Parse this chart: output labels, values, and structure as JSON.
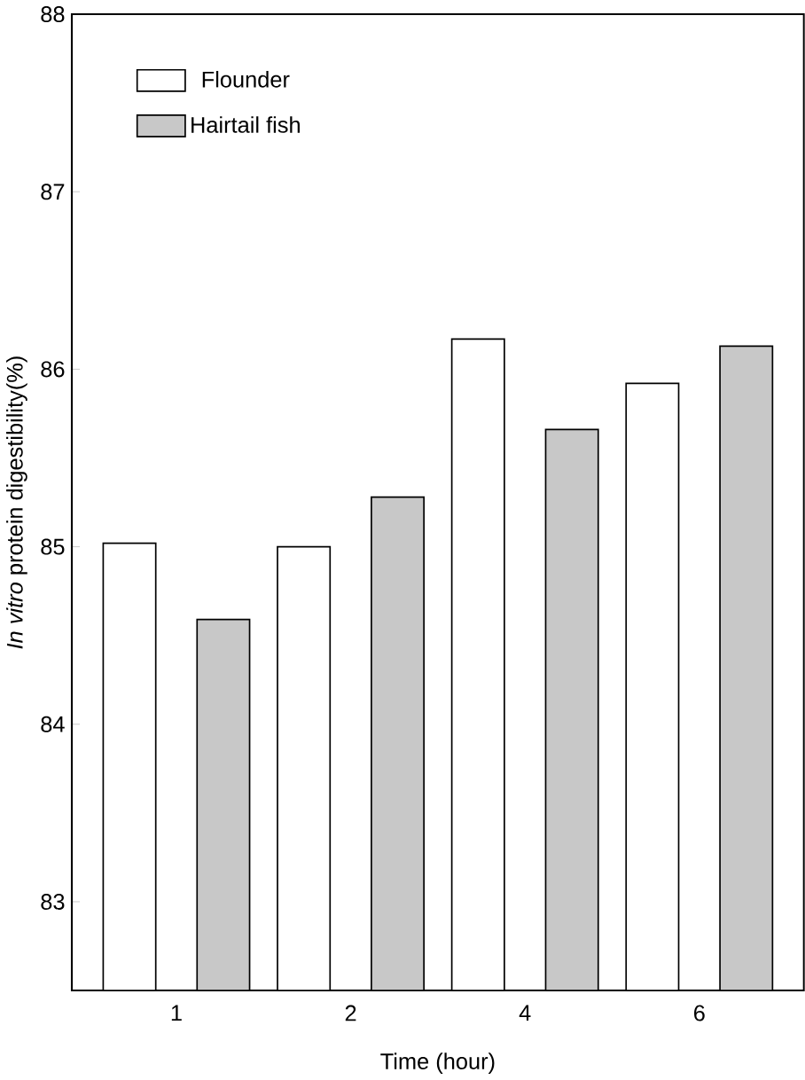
{
  "chart_data": {
    "type": "bar",
    "xlabel": "Time (hour)",
    "ylabel": "*In vitro* protein digestibility(%)",
    "categories": [
      "1",
      "2",
      "4",
      "6"
    ],
    "series": [
      {
        "name": "Flounder",
        "color": "#ffffff",
        "values": [
          85.02,
          85.0,
          86.17,
          85.92
        ]
      },
      {
        "name": "Hairtail fish",
        "color": "#c8c8c8",
        "values": [
          84.59,
          85.28,
          85.66,
          86.13
        ]
      }
    ],
    "ylim": [
      82.5,
      88
    ],
    "yticks": [
      83,
      84,
      85,
      86,
      87,
      88
    ],
    "grid": false,
    "legend": "top left"
  }
}
